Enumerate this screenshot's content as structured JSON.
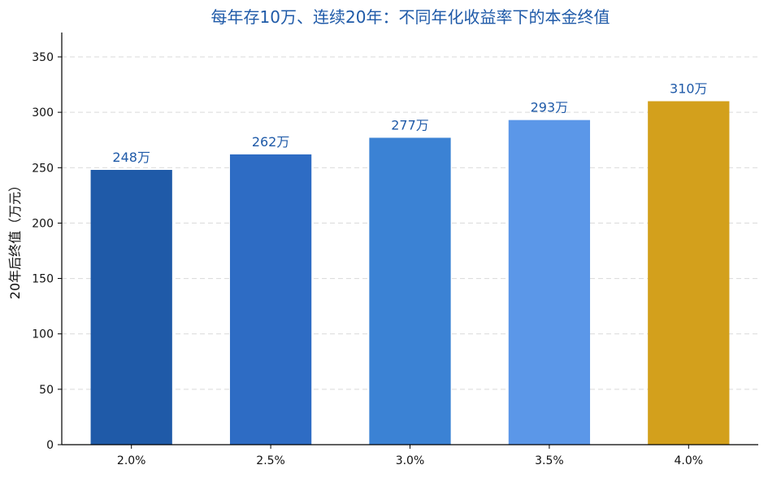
{
  "chart_data": {
    "type": "bar",
    "title": "每年存10万、连续20年：不同年化收益率下的本金终值",
    "xlabel": "",
    "ylabel": "20年后终值（万元）",
    "categories": [
      "2.0%",
      "2.5%",
      "3.0%",
      "3.5%",
      "4.0%"
    ],
    "values": [
      248,
      262,
      277,
      293,
      310
    ],
    "data_labels": [
      "248万",
      "262万",
      "277万",
      "293万",
      "310万"
    ],
    "colors": [
      "#1f5aa8",
      "#2e6cc4",
      "#3b82d4",
      "#5b97e8",
      "#d3a01c"
    ],
    "ylim": [
      0,
      372
    ],
    "yticks": [
      0,
      50,
      100,
      150,
      200,
      250,
      300,
      350
    ],
    "grid": true
  }
}
